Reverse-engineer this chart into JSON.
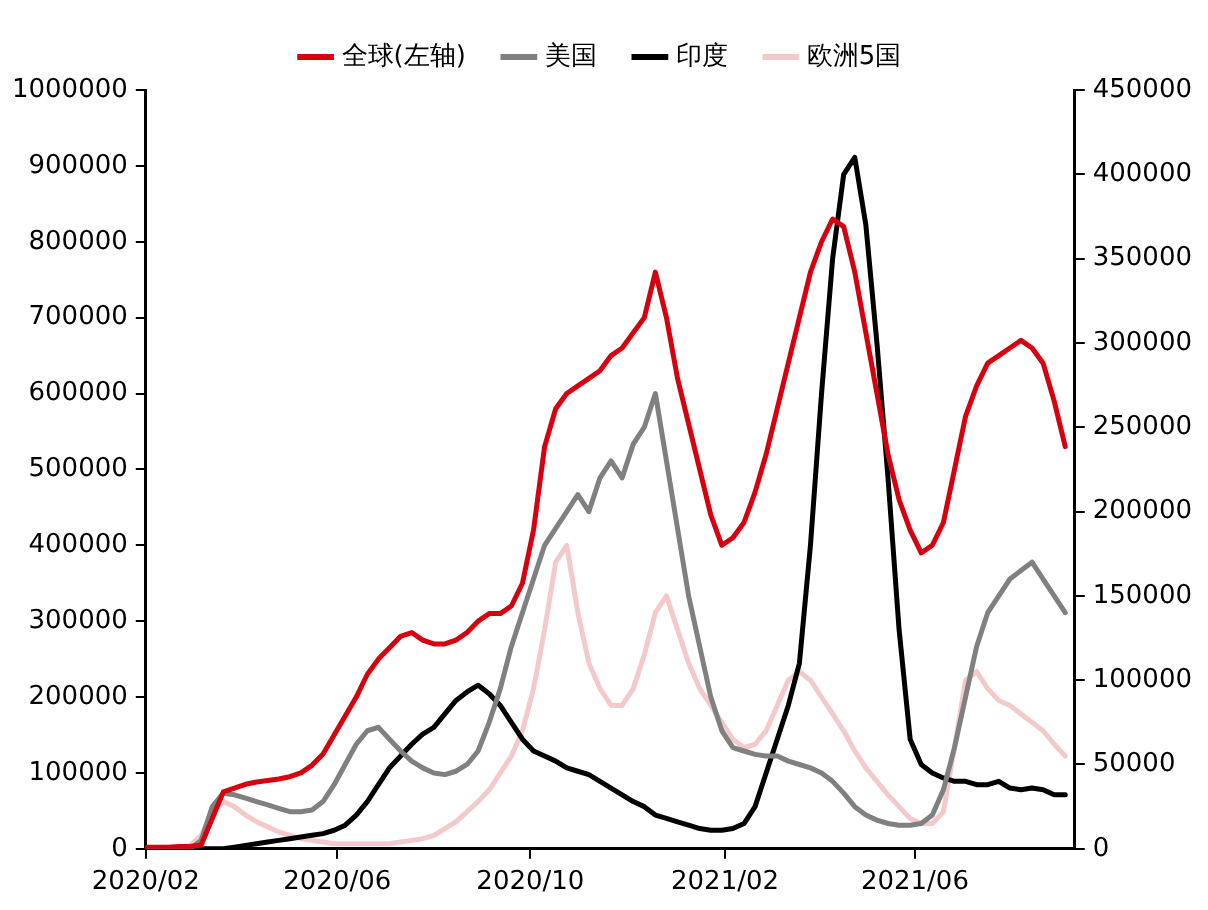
{
  "chart_data": {
    "type": "line",
    "x": [
      "2020-02-01",
      "2020-02-08",
      "2020-02-15",
      "2020-02-22",
      "2020-02-29",
      "2020-03-07",
      "2020-03-14",
      "2020-03-21",
      "2020-03-28",
      "2020-04-04",
      "2020-04-11",
      "2020-04-18",
      "2020-04-25",
      "2020-05-02",
      "2020-05-09",
      "2020-05-16",
      "2020-05-23",
      "2020-05-30",
      "2020-06-06",
      "2020-06-13",
      "2020-06-20",
      "2020-06-27",
      "2020-07-04",
      "2020-07-11",
      "2020-07-18",
      "2020-07-25",
      "2020-08-01",
      "2020-08-08",
      "2020-08-15",
      "2020-08-22",
      "2020-08-29",
      "2020-09-05",
      "2020-09-12",
      "2020-09-19",
      "2020-09-26",
      "2020-10-03",
      "2020-10-10",
      "2020-10-17",
      "2020-10-24",
      "2020-10-31",
      "2020-11-07",
      "2020-11-14",
      "2020-11-21",
      "2020-11-28",
      "2020-12-05",
      "2020-12-12",
      "2020-12-19",
      "2020-12-26",
      "2021-01-02",
      "2021-01-09",
      "2021-01-16",
      "2021-01-23",
      "2021-01-30",
      "2021-02-06",
      "2021-02-13",
      "2021-02-20",
      "2021-02-27",
      "2021-03-06",
      "2021-03-13",
      "2021-03-20",
      "2021-03-27",
      "2021-04-03",
      "2021-04-10",
      "2021-04-17",
      "2021-04-24",
      "2021-05-01",
      "2021-05-08",
      "2021-05-15",
      "2021-05-22",
      "2021-05-29",
      "2021-06-05",
      "2021-06-12",
      "2021-06-19",
      "2021-06-26",
      "2021-07-03",
      "2021-07-10",
      "2021-07-17",
      "2021-07-24",
      "2021-07-31",
      "2021-08-07",
      "2021-08-14",
      "2021-08-21",
      "2021-08-28",
      "2021-09-04"
    ],
    "series": [
      {
        "name": "全球(左轴)",
        "color": "#d7000f",
        "values": [
          2000,
          2000,
          2000,
          3000,
          3000,
          5000,
          40000,
          75000,
          80000,
          85000,
          88000,
          90000,
          92000,
          95000,
          100000,
          110000,
          125000,
          150000,
          175000,
          200000,
          230000,
          250000,
          265000,
          280000,
          285000,
          275000,
          270000,
          270000,
          275000,
          285000,
          300000,
          310000,
          310000,
          320000,
          350000,
          420000,
          530000,
          580000,
          600000,
          610000,
          620000,
          630000,
          650000,
          660000,
          680000,
          700000,
          760000,
          700000,
          620000,
          560000,
          500000,
          440000,
          400000,
          410000,
          430000,
          470000,
          520000,
          580000,
          640000,
          700000,
          760000,
          800000,
          830000,
          820000,
          760000,
          680000,
          600000,
          520000,
          460000,
          420000,
          390000,
          400000,
          430000,
          500000,
          570000,
          610000,
          640000,
          650000,
          660000,
          670000,
          660000,
          640000,
          590000,
          530000
        ]
      },
      {
        "name": "美国",
        "color": "#808080",
        "axis": "y2",
        "values": [
          0,
          0,
          0,
          0,
          0,
          5000,
          25000,
          33000,
          32000,
          30000,
          28000,
          26000,
          24000,
          22000,
          22000,
          23000,
          28000,
          38000,
          50000,
          62000,
          70000,
          72000,
          65000,
          58000,
          52000,
          48000,
          45000,
          44000,
          46000,
          50000,
          58000,
          75000,
          95000,
          120000,
          140000,
          160000,
          180000,
          190000,
          200000,
          210000,
          200000,
          220000,
          230000,
          220000,
          240000,
          250000,
          270000,
          230000,
          190000,
          150000,
          120000,
          90000,
          70000,
          60000,
          58000,
          56000,
          55000,
          55000,
          52000,
          50000,
          48000,
          45000,
          40000,
          33000,
          25000,
          20000,
          17000,
          15000,
          14000,
          14000,
          15000,
          20000,
          35000,
          60000,
          90000,
          120000,
          140000,
          150000,
          160000,
          165000,
          170000,
          160000,
          150000,
          140000
        ]
      },
      {
        "name": "印度",
        "color": "#000000",
        "axis": "y2",
        "values": [
          0,
          0,
          0,
          0,
          0,
          0,
          0,
          0,
          1000,
          2000,
          3000,
          4000,
          5000,
          6000,
          7000,
          8000,
          9000,
          11000,
          14000,
          20000,
          28000,
          38000,
          48000,
          55000,
          62000,
          68000,
          72000,
          80000,
          88000,
          93000,
          97000,
          92000,
          85000,
          75000,
          65000,
          58000,
          55000,
          52000,
          48000,
          46000,
          44000,
          40000,
          36000,
          32000,
          28000,
          25000,
          20000,
          18000,
          16000,
          14000,
          12000,
          11000,
          11000,
          12000,
          15000,
          25000,
          45000,
          65000,
          85000,
          110000,
          180000,
          270000,
          350000,
          400000,
          410000,
          370000,
          300000,
          220000,
          130000,
          65000,
          50000,
          45000,
          42000,
          40000,
          40000,
          38000,
          38000,
          40000,
          36000,
          35000,
          36000,
          35000,
          32000,
          32000
        ]
      },
      {
        "name": "欧洲5国",
        "color": "#f4c9cc",
        "axis": "y2",
        "values": [
          0,
          0,
          0,
          0,
          2000,
          8000,
          22000,
          28000,
          25000,
          20000,
          16000,
          13000,
          10000,
          8000,
          6000,
          5000,
          4000,
          3000,
          3000,
          3000,
          3000,
          3000,
          3000,
          4000,
          5000,
          6000,
          8000,
          12000,
          16000,
          22000,
          28000,
          35000,
          45000,
          55000,
          70000,
          95000,
          130000,
          170000,
          180000,
          140000,
          110000,
          95000,
          85000,
          85000,
          95000,
          115000,
          140000,
          150000,
          130000,
          110000,
          95000,
          85000,
          75000,
          65000,
          60000,
          62000,
          70000,
          85000,
          100000,
          105000,
          100000,
          90000,
          80000,
          70000,
          58000,
          48000,
          40000,
          32000,
          25000,
          18000,
          15000,
          15000,
          22000,
          60000,
          100000,
          105000,
          95000,
          88000,
          85000,
          80000,
          75000,
          70000,
          62000,
          55000
        ]
      }
    ],
    "xlim": [
      "2020-02-01",
      "2021-09-10"
    ],
    "xticks": [
      {
        "value": "2020-02-01",
        "label": "2020/02"
      },
      {
        "value": "2020-06-01",
        "label": "2020/06"
      },
      {
        "value": "2020-10-01",
        "label": "2020/10"
      },
      {
        "value": "2021-02-01",
        "label": "2021/02"
      },
      {
        "value": "2021-06-01",
        "label": "2021/06"
      }
    ],
    "ylim": [
      0,
      1000000
    ],
    "yticks": [
      0,
      100000,
      200000,
      300000,
      400000,
      500000,
      600000,
      700000,
      800000,
      900000,
      1000000
    ],
    "y2lim": [
      0,
      450000
    ],
    "y2ticks": [
      0,
      50000,
      100000,
      150000,
      200000,
      250000,
      300000,
      350000,
      400000,
      450000
    ],
    "grid": false,
    "legend": "top",
    "marker": "none",
    "line_style": "solid"
  }
}
